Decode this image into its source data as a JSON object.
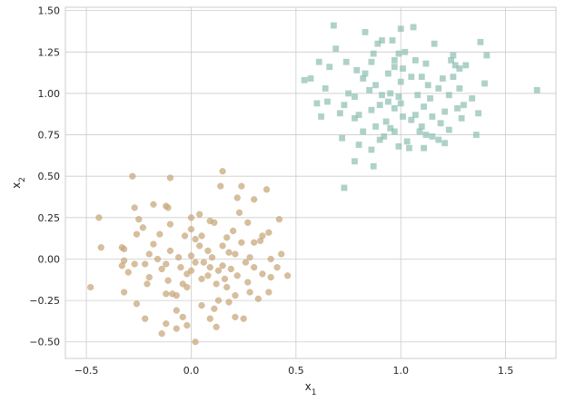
{
  "chart_data": {
    "type": "scatter",
    "xlabel_base": "x",
    "xlabel_sub": "1",
    "ylabel_base": "x",
    "ylabel_sub": "2",
    "xlim": [
      -0.6,
      1.74
    ],
    "ylim": [
      -0.6,
      1.52
    ],
    "x_ticks": [
      -0.5,
      0.0,
      0.5,
      1.0,
      1.5
    ],
    "x_tick_labels": [
      "−0.5",
      "0.0",
      "0.5",
      "1.0",
      "1.5"
    ],
    "y_ticks": [
      -0.5,
      -0.25,
      0.0,
      0.25,
      0.5,
      0.75,
      1.0,
      1.25,
      1.5
    ],
    "y_tick_labels": [
      "−0.50",
      "−0.25",
      "0.00",
      "0.25",
      "0.50",
      "0.75",
      "1.00",
      "1.25",
      "1.50"
    ],
    "grid": true,
    "series": [
      {
        "marker": "circle",
        "color": "#c9aa7e",
        "points": [
          [
            -0.28,
            0.5
          ],
          [
            -0.1,
            0.49
          ],
          [
            0.15,
            0.53
          ],
          [
            -0.27,
            0.31
          ],
          [
            0.14,
            0.44
          ],
          [
            0.24,
            0.44
          ],
          [
            0.36,
            0.42
          ],
          [
            0.22,
            0.37
          ],
          [
            0.3,
            0.36
          ],
          [
            -0.18,
            0.33
          ],
          [
            -0.12,
            0.32
          ],
          [
            -0.11,
            0.31
          ],
          [
            0.04,
            0.27
          ],
          [
            0.0,
            0.25
          ],
          [
            -0.44,
            0.25
          ],
          [
            0.42,
            0.24
          ],
          [
            -0.25,
            0.24
          ],
          [
            -0.1,
            0.21
          ],
          [
            0.09,
            0.23
          ],
          [
            0.11,
            0.22
          ],
          [
            0.23,
            0.28
          ],
          [
            0.27,
            0.22
          ],
          [
            -0.23,
            0.19
          ],
          [
            0.0,
            0.18
          ],
          [
            0.2,
            0.17
          ],
          [
            -0.03,
            0.14
          ],
          [
            0.05,
            0.14
          ],
          [
            0.17,
            0.13
          ],
          [
            0.34,
            0.14
          ],
          [
            0.37,
            0.16
          ],
          [
            -0.26,
            0.15
          ],
          [
            -0.15,
            0.15
          ],
          [
            0.02,
            0.12
          ],
          [
            0.24,
            0.1
          ],
          [
            0.3,
            0.1
          ],
          [
            -0.18,
            0.09
          ],
          [
            0.04,
            0.08
          ],
          [
            0.15,
            0.08
          ],
          [
            -0.43,
            0.07
          ],
          [
            -0.33,
            0.07
          ],
          [
            -0.32,
            0.06
          ],
          [
            -0.1,
            0.05
          ],
          [
            0.08,
            0.05
          ],
          [
            0.18,
            0.04
          ],
          [
            0.21,
            0.03
          ],
          [
            0.43,
            0.03
          ],
          [
            -0.2,
            0.03
          ],
          [
            0.28,
            0.01
          ],
          [
            0.0,
            0.02
          ],
          [
            0.1,
            0.01
          ],
          [
            -0.06,
            0.01
          ],
          [
            -0.16,
            0.0
          ],
          [
            0.38,
            0.0
          ],
          [
            -0.32,
            -0.01
          ],
          [
            0.02,
            -0.02
          ],
          [
            0.26,
            -0.02
          ],
          [
            -0.12,
            -0.03
          ],
          [
            0.06,
            -0.02
          ],
          [
            -0.27,
            -0.03
          ],
          [
            -0.22,
            -0.03
          ],
          [
            -0.33,
            -0.04
          ],
          [
            0.15,
            -0.04
          ],
          [
            0.3,
            -0.05
          ],
          [
            -0.05,
            -0.05
          ],
          [
            0.09,
            -0.05
          ],
          [
            0.41,
            -0.05
          ],
          [
            0.19,
            -0.06
          ],
          [
            -0.14,
            -0.06
          ],
          [
            0.0,
            -0.07
          ],
          [
            0.13,
            -0.07
          ],
          [
            -0.3,
            -0.08
          ],
          [
            0.34,
            -0.09
          ],
          [
            -0.02,
            -0.09
          ],
          [
            0.08,
            -0.1
          ],
          [
            0.22,
            -0.1
          ],
          [
            0.46,
            -0.1
          ],
          [
            -0.2,
            -0.11
          ],
          [
            0.05,
            -0.12
          ],
          [
            0.16,
            -0.12
          ],
          [
            0.38,
            -0.11
          ],
          [
            -0.11,
            -0.13
          ],
          [
            -0.04,
            -0.15
          ],
          [
            0.12,
            -0.15
          ],
          [
            0.27,
            -0.14
          ],
          [
            -0.21,
            -0.15
          ],
          [
            -0.02,
            -0.17
          ],
          [
            0.17,
            -0.17
          ],
          [
            -0.48,
            -0.17
          ],
          [
            -0.09,
            -0.21
          ],
          [
            -0.32,
            -0.2
          ],
          [
            0.28,
            -0.2
          ],
          [
            -0.07,
            -0.22
          ],
          [
            -0.12,
            -0.21
          ],
          [
            0.21,
            -0.22
          ],
          [
            0.37,
            -0.2
          ],
          [
            -0.26,
            -0.27
          ],
          [
            0.13,
            -0.25
          ],
          [
            -0.07,
            -0.31
          ],
          [
            0.05,
            -0.28
          ],
          [
            0.18,
            -0.26
          ],
          [
            0.32,
            -0.24
          ],
          [
            0.11,
            -0.3
          ],
          [
            -0.22,
            -0.36
          ],
          [
            -0.04,
            -0.35
          ],
          [
            0.21,
            -0.35
          ],
          [
            0.25,
            -0.36
          ],
          [
            0.09,
            -0.36
          ],
          [
            -0.12,
            -0.39
          ],
          [
            -0.02,
            -0.4
          ],
          [
            0.12,
            -0.41
          ],
          [
            -0.14,
            -0.45
          ],
          [
            0.02,
            -0.5
          ],
          [
            -0.07,
            -0.42
          ],
          [
            0.33,
            0.11
          ]
        ]
      },
      {
        "marker": "square",
        "color": "#8fbfb3",
        "points": [
          [
            0.68,
            1.41
          ],
          [
            0.91,
            1.32
          ],
          [
            1.06,
            1.4
          ],
          [
            0.83,
            1.37
          ],
          [
            1.0,
            1.39
          ],
          [
            0.89,
            1.3
          ],
          [
            0.96,
            1.32
          ],
          [
            1.16,
            1.3
          ],
          [
            1.38,
            1.31
          ],
          [
            1.02,
            1.25
          ],
          [
            0.99,
            1.24
          ],
          [
            1.25,
            1.23
          ],
          [
            1.41,
            1.23
          ],
          [
            1.07,
            1.2
          ],
          [
            1.24,
            1.2
          ],
          [
            0.86,
            1.19
          ],
          [
            0.74,
            1.19
          ],
          [
            0.61,
            1.19
          ],
          [
            0.66,
            1.16
          ],
          [
            1.12,
            1.18
          ],
          [
            1.31,
            1.17
          ],
          [
            0.79,
            1.14
          ],
          [
            0.97,
            1.16
          ],
          [
            1.28,
            1.15
          ],
          [
            0.94,
            1.12
          ],
          [
            1.1,
            1.1
          ],
          [
            0.57,
            1.09
          ],
          [
            0.54,
            1.08
          ],
          [
            0.82,
            1.09
          ],
          [
            1.2,
            1.09
          ],
          [
            1.25,
            1.1
          ],
          [
            1.0,
            1.07
          ],
          [
            0.88,
            1.05
          ],
          [
            1.4,
            1.06
          ],
          [
            0.64,
            1.03
          ],
          [
            0.75,
            1.0
          ],
          [
            0.85,
            1.02
          ],
          [
            0.95,
            1.0
          ],
          [
            1.08,
            0.99
          ],
          [
            1.65,
            1.02
          ],
          [
            0.78,
            0.98
          ],
          [
            0.99,
            0.98
          ],
          [
            1.14,
            0.97
          ],
          [
            1.23,
            0.99
          ],
          [
            1.34,
            0.97
          ],
          [
            0.6,
            0.94
          ],
          [
            0.73,
            0.93
          ],
          [
            0.9,
            0.93
          ],
          [
            1.11,
            0.92
          ],
          [
            1.27,
            0.91
          ],
          [
            0.86,
            0.9
          ],
          [
            0.97,
            0.91
          ],
          [
            1.21,
            0.89
          ],
          [
            1.37,
            0.88
          ],
          [
            0.71,
            0.88
          ],
          [
            0.78,
            0.85
          ],
          [
            1.01,
            0.86
          ],
          [
            1.15,
            0.86
          ],
          [
            1.29,
            0.85
          ],
          [
            0.62,
            0.86
          ],
          [
            0.93,
            0.83
          ],
          [
            1.05,
            0.84
          ],
          [
            0.88,
            0.8
          ],
          [
            1.1,
            0.8
          ],
          [
            1.23,
            0.78
          ],
          [
            0.82,
            0.77
          ],
          [
            0.97,
            0.77
          ],
          [
            1.12,
            0.75
          ],
          [
            0.72,
            0.73
          ],
          [
            0.9,
            0.72
          ],
          [
            1.03,
            0.71
          ],
          [
            1.18,
            0.72
          ],
          [
            0.8,
            0.69
          ],
          [
            0.99,
            0.68
          ],
          [
            1.11,
            0.67
          ],
          [
            1.21,
            0.7
          ],
          [
            0.87,
            0.56
          ],
          [
            0.78,
            0.59
          ],
          [
            0.73,
            0.43
          ],
          [
            1.04,
            0.67
          ],
          [
            0.86,
            0.66
          ],
          [
            0.95,
            0.79
          ],
          [
            1.3,
            0.93
          ],
          [
            1.18,
            1.03
          ],
          [
            1.01,
            1.15
          ],
          [
            0.91,
            0.99
          ],
          [
            1.07,
            0.87
          ],
          [
            0.83,
            1.12
          ],
          [
            1.36,
            0.75
          ],
          [
            0.69,
            1.27
          ],
          [
            1.19,
            0.82
          ],
          [
            0.94,
            0.95
          ],
          [
            1.13,
            1.05
          ],
          [
            0.87,
            1.24
          ],
          [
            0.97,
            1.2
          ],
          [
            1.28,
            1.03
          ],
          [
            0.65,
            0.95
          ],
          [
            1.09,
            0.77
          ],
          [
            1.0,
            0.94
          ],
          [
            0.92,
            0.74
          ],
          [
            1.15,
            0.74
          ],
          [
            1.26,
            1.17
          ],
          [
            0.8,
            0.87
          ],
          [
            1.05,
            1.1
          ]
        ]
      }
    ]
  }
}
